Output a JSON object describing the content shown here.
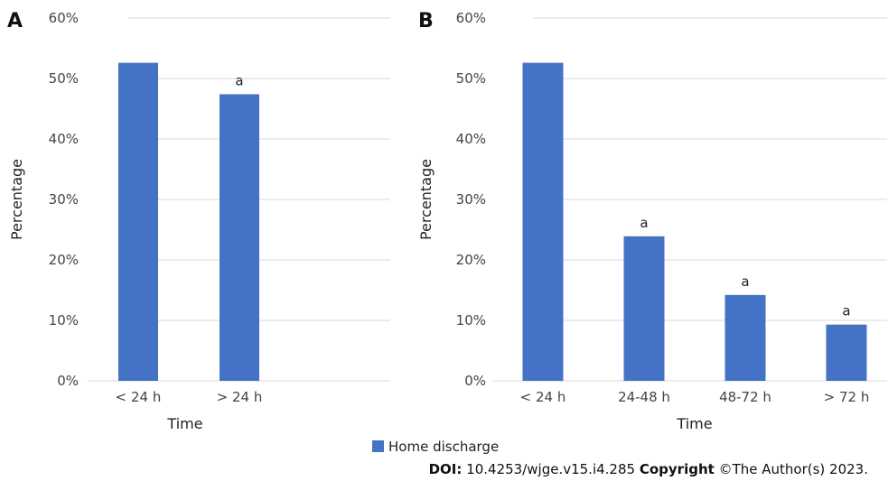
{
  "chart_data": [
    {
      "type": "bar",
      "panel_label": "A",
      "categories": [
        "< 24 h",
        "> 24 h"
      ],
      "series": [
        {
          "name": "Home discharge",
          "values": [
            52.6,
            47.4
          ]
        }
      ],
      "annotations": [
        "",
        "a"
      ],
      "xlabel": "Time",
      "ylabel": "Percentage",
      "ylim": [
        0,
        60
      ],
      "yticks": [
        "0%",
        "10%",
        "20%",
        "30%",
        "40%",
        "50%",
        "60%"
      ],
      "grid": true
    },
    {
      "type": "bar",
      "panel_label": "B",
      "categories": [
        "< 24 h",
        "24-48 h",
        "48-72 h",
        "> 72 h"
      ],
      "series": [
        {
          "name": "Home discharge",
          "values": [
            52.6,
            23.9,
            14.2,
            9.3
          ]
        }
      ],
      "annotations": [
        "",
        "a",
        "a",
        "a"
      ],
      "xlabel": "Time",
      "ylabel": "Percentage",
      "ylim": [
        0,
        60
      ],
      "yticks": [
        "0%",
        "10%",
        "20%",
        "30%",
        "40%",
        "50%",
        "60%"
      ],
      "grid": true
    }
  ],
  "legend": {
    "label": "Home discharge",
    "color": "#4472c4",
    "placement": "bottom-center"
  },
  "colors": {
    "bar": "#4472c4",
    "grid": "#d9d9d9"
  },
  "footer": {
    "doi_label": "DOI:",
    "doi_value": "10.4253/wjge.v15.i4.285",
    "copyright_label": "Copyright",
    "copyright_value": "©The Author(s) 2023."
  }
}
